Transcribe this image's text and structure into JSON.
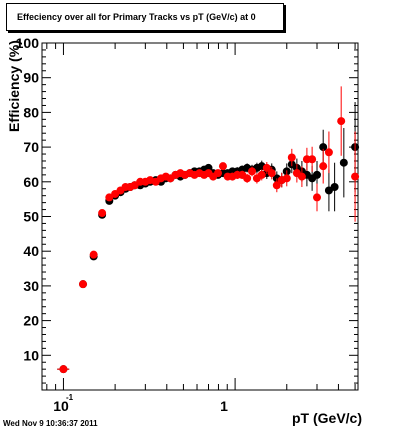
{
  "footer": {
    "timestamp": "Wed Nov  9 10:36:37 2011"
  },
  "chart_data": {
    "type": "scatter",
    "title": "Effeciency over all for Primary Tracks vs pT (GeV/c) at 0",
    "xlabel": "pT (GeV/c)",
    "ylabel": "Efficiency (%)",
    "xscale": "log",
    "xlim": [
      0.075,
      5.2
    ],
    "ylim": [
      0,
      100
    ],
    "x_tick_labels": [
      "10",
      "-1",
      "1"
    ],
    "y_ticks": [
      10,
      20,
      30,
      40,
      50,
      60,
      70,
      80,
      90,
      100
    ],
    "grid": false,
    "marker_style": "filled circles with error bars",
    "series": [
      {
        "color": "#000000",
        "points": [
          [
            0.1,
            6.0,
            0.5,
            0.008
          ],
          [
            0.13,
            30.5,
            0.5,
            0.006
          ],
          [
            0.15,
            38.5,
            0.6,
            0.006
          ],
          [
            0.168,
            50.5,
            0.7,
            0.005
          ],
          [
            0.185,
            54.5,
            0.6,
            0.005
          ],
          [
            0.2,
            56.0,
            0.5,
            0.005
          ],
          [
            0.215,
            57.0,
            0.5,
            0.005
          ],
          [
            0.23,
            58.0,
            0.5,
            0.005
          ],
          [
            0.245,
            58.5,
            0.5,
            0.005
          ],
          [
            0.26,
            59.0,
            0.5,
            0.005
          ],
          [
            0.28,
            59.0,
            0.5,
            0.006
          ],
          [
            0.3,
            59.5,
            0.5,
            0.006
          ],
          [
            0.32,
            60.0,
            0.5,
            0.006
          ],
          [
            0.345,
            60.5,
            0.5,
            0.006
          ],
          [
            0.37,
            60.0,
            0.5,
            0.006
          ],
          [
            0.395,
            61.0,
            0.6,
            0.007
          ],
          [
            0.42,
            61.0,
            0.6,
            0.007
          ],
          [
            0.45,
            62.0,
            0.6,
            0.007
          ],
          [
            0.48,
            61.5,
            0.6,
            0.007
          ],
          [
            0.51,
            62.0,
            0.7,
            0.008
          ],
          [
            0.545,
            62.5,
            0.7,
            0.008
          ],
          [
            0.58,
            63.0,
            0.7,
            0.008
          ],
          [
            0.62,
            63.0,
            0.8,
            0.009
          ],
          [
            0.66,
            63.5,
            0.8,
            0.009
          ],
          [
            0.7,
            64.0,
            0.8,
            0.01
          ],
          [
            0.745,
            62.5,
            0.9,
            0.01
          ],
          [
            0.795,
            62.0,
            0.9,
            0.011
          ],
          [
            0.85,
            62.5,
            1.0,
            0.012
          ],
          [
            0.905,
            62.5,
            1.0,
            0.012
          ],
          [
            0.965,
            63.0,
            1.1,
            0.013
          ],
          [
            1.03,
            63.0,
            1.2,
            0.014
          ],
          [
            1.1,
            63.5,
            1.2,
            0.015
          ],
          [
            1.175,
            64.0,
            1.3,
            0.016
          ],
          [
            1.255,
            63.5,
            1.4,
            0.017
          ],
          [
            1.34,
            64.0,
            1.5,
            0.018
          ],
          [
            1.43,
            64.5,
            1.6,
            0.019
          ],
          [
            1.53,
            62.5,
            1.7,
            0.021
          ],
          [
            1.635,
            63.5,
            1.8,
            0.022
          ],
          [
            1.75,
            61.0,
            2.0,
            0.024
          ],
          [
            1.87,
            60.5,
            2.1,
            0.025
          ],
          [
            2.0,
            63.0,
            2.3,
            0.027
          ],
          [
            2.14,
            65.0,
            2.5,
            0.029
          ],
          [
            2.29,
            64.0,
            2.7,
            0.031
          ],
          [
            2.45,
            63.0,
            3.0,
            0.033
          ],
          [
            2.62,
            62.0,
            3.3,
            0.035
          ],
          [
            2.81,
            61.0,
            3.6,
            0.038
          ],
          [
            3.0,
            62.0,
            4.0,
            0.04
          ],
          [
            3.26,
            70.0,
            5.0,
            0.06
          ],
          [
            3.52,
            57.5,
            6.0,
            0.07
          ],
          [
            3.8,
            58.5,
            7.0,
            0.08
          ],
          [
            4.3,
            65.5,
            10.0,
            0.13
          ],
          [
            5.0,
            70.0,
            13.0,
            0.17
          ]
        ]
      },
      {
        "color": "#ff0000",
        "points": [
          [
            0.1,
            6.0,
            0.5,
            0.008
          ],
          [
            0.13,
            30.5,
            0.5,
            0.006
          ],
          [
            0.15,
            39.0,
            0.6,
            0.006
          ],
          [
            0.168,
            51.0,
            0.7,
            0.005
          ],
          [
            0.185,
            55.5,
            0.6,
            0.005
          ],
          [
            0.2,
            56.5,
            0.5,
            0.005
          ],
          [
            0.215,
            57.5,
            0.5,
            0.005
          ],
          [
            0.23,
            58.5,
            0.5,
            0.005
          ],
          [
            0.245,
            58.5,
            0.5,
            0.005
          ],
          [
            0.26,
            59.0,
            0.5,
            0.005
          ],
          [
            0.28,
            60.0,
            0.5,
            0.006
          ],
          [
            0.3,
            60.0,
            0.5,
            0.006
          ],
          [
            0.32,
            60.5,
            0.5,
            0.006
          ],
          [
            0.345,
            60.0,
            0.5,
            0.006
          ],
          [
            0.37,
            61.0,
            0.5,
            0.006
          ],
          [
            0.395,
            61.5,
            0.6,
            0.007
          ],
          [
            0.42,
            61.0,
            0.6,
            0.007
          ],
          [
            0.45,
            62.0,
            0.6,
            0.007
          ],
          [
            0.48,
            62.5,
            0.6,
            0.007
          ],
          [
            0.51,
            62.0,
            0.7,
            0.008
          ],
          [
            0.545,
            62.5,
            0.7,
            0.008
          ],
          [
            0.58,
            62.0,
            0.7,
            0.008
          ],
          [
            0.62,
            62.5,
            0.8,
            0.009
          ],
          [
            0.66,
            62.0,
            0.8,
            0.009
          ],
          [
            0.7,
            62.5,
            0.8,
            0.01
          ],
          [
            0.745,
            61.5,
            0.9,
            0.01
          ],
          [
            0.795,
            62.5,
            0.9,
            0.011
          ],
          [
            0.85,
            64.5,
            1.0,
            0.012
          ],
          [
            0.905,
            61.5,
            1.0,
            0.012
          ],
          [
            0.965,
            61.5,
            1.1,
            0.013
          ],
          [
            1.03,
            62.0,
            1.2,
            0.014
          ],
          [
            1.1,
            62.0,
            1.2,
            0.015
          ],
          [
            1.175,
            61.0,
            1.3,
            0.016
          ],
          [
            1.255,
            63.0,
            1.4,
            0.017
          ],
          [
            1.34,
            61.0,
            1.5,
            0.018
          ],
          [
            1.43,
            62.0,
            1.6,
            0.019
          ],
          [
            1.53,
            64.0,
            1.7,
            0.021
          ],
          [
            1.635,
            62.5,
            1.8,
            0.022
          ],
          [
            1.75,
            59.0,
            2.0,
            0.024
          ],
          [
            1.87,
            60.5,
            2.1,
            0.025
          ],
          [
            2.0,
            61.0,
            2.3,
            0.027
          ],
          [
            2.14,
            67.0,
            2.5,
            0.029
          ],
          [
            2.29,
            62.5,
            2.7,
            0.031
          ],
          [
            2.45,
            61.5,
            3.0,
            0.033
          ],
          [
            2.62,
            66.5,
            3.3,
            0.035
          ],
          [
            2.81,
            66.5,
            3.6,
            0.038
          ],
          [
            3.0,
            55.5,
            4.0,
            0.04
          ],
          [
            3.26,
            64.5,
            5.0,
            0.06
          ],
          [
            3.52,
            68.5,
            6.0,
            0.07
          ],
          [
            4.15,
            77.5,
            10.0,
            0.13
          ],
          [
            5.0,
            61.5,
            13.0,
            0.17
          ]
        ]
      }
    ]
  }
}
